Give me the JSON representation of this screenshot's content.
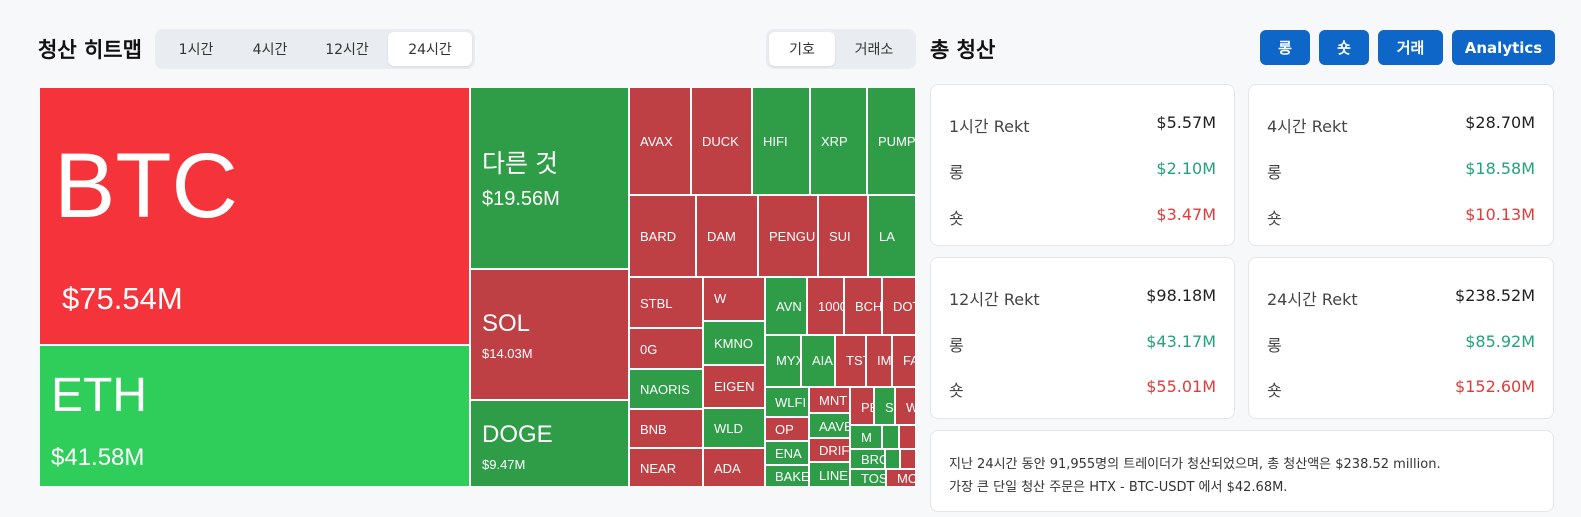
{
  "heatmap": {
    "title": "청산 히트맵",
    "timeframes": [
      "1시간",
      "4시간",
      "12시간",
      "24시간"
    ],
    "active_timeframe": "24시간",
    "groupby": [
      "기호",
      "거래소"
    ],
    "active_groupby": "기호",
    "main_tiles": [
      {
        "symbol": "BTC",
        "value": "$75.54M",
        "side": "red"
      },
      {
        "symbol": "ETH",
        "value": "$41.58M",
        "side": "green"
      },
      {
        "symbol": "다른 것",
        "value": "$19.56M",
        "side": "green"
      },
      {
        "symbol": "SOL",
        "value": "$14.03M",
        "side": "red"
      },
      {
        "symbol": "DOGE",
        "value": "$9.47M",
        "side": "green"
      }
    ],
    "small_tiles": [
      "AVAX",
      "DUCK",
      "HIFI",
      "XRP",
      "PUMP",
      "BARD",
      "DAM",
      "PENGU",
      "SUI",
      "LA",
      "STBL",
      "W",
      "AVN",
      "1000",
      "BCH",
      "DOT",
      "0G",
      "KMNO",
      "MYX",
      "AIA",
      "TST",
      "IM",
      "FA",
      "NAORIS",
      "EIGEN",
      "WLFI",
      "MNT",
      "PE",
      "S",
      "W",
      "BNB",
      "WLD",
      "OP",
      "AAVE",
      "M",
      "ENA",
      "DRIF",
      "BRO",
      "NEAR",
      "ADA",
      "BAKE",
      "LINE",
      "TOS",
      "MO"
    ]
  },
  "totals": {
    "title": "총 청산",
    "buttons": [
      "롱",
      "숏",
      "거래",
      "Analytics"
    ],
    "cards": [
      {
        "label": "1시간 Rekt",
        "total": "$5.57M",
        "long_label": "롱",
        "long": "$2.10M",
        "short_label": "숏",
        "short": "$3.47M"
      },
      {
        "label": "4시간 Rekt",
        "total": "$28.70M",
        "long_label": "롱",
        "long": "$18.58M",
        "short_label": "숏",
        "short": "$10.13M"
      },
      {
        "label": "12시간 Rekt",
        "total": "$98.18M",
        "long_label": "롱",
        "long": "$43.17M",
        "short_label": "숏",
        "short": "$55.01M"
      },
      {
        "label": "24시간 Rekt",
        "total": "$238.52M",
        "long_label": "롱",
        "long": "$85.92M",
        "short_label": "숏",
        "short": "$152.60M"
      }
    ],
    "summary_line1": "지난 24시간 동안 91,955명의 트레이더가 청산되었으며, 총 청산액은 $238.52 million.",
    "summary_line2": "가장 큰 단일 청산 주문은 HTX - BTC-USDT 에서 $42.68M."
  },
  "colors": {
    "long_text": "#22a37a",
    "short_text": "#e23b3b",
    "btc_tile": "#f5333a",
    "eth_tile": "#2fcd59",
    "red_tile": "#be3f44",
    "green_tile": "#2f9d48",
    "button": "#0d66c8"
  }
}
